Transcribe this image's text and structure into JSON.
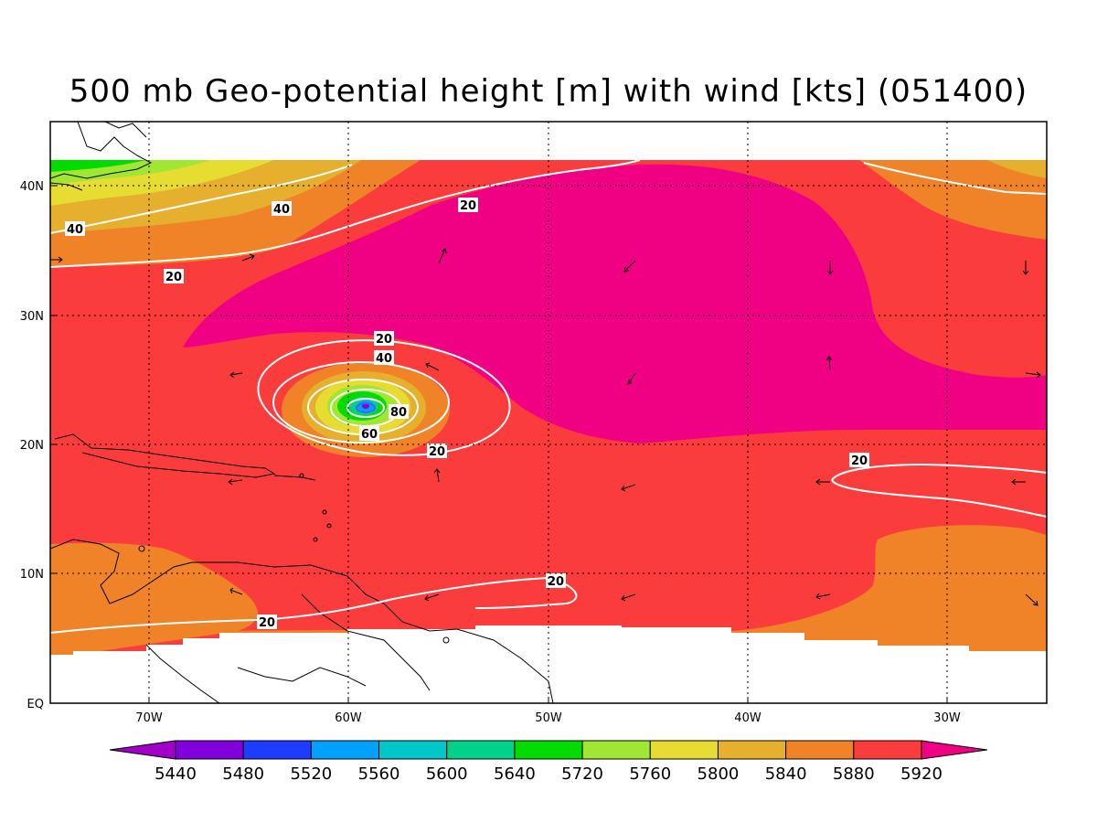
{
  "title": "500 mb Geo-potential height [m] with wind [kts] (051400)",
  "axes": {
    "lon_labels": [
      "70W",
      "60W",
      "50W",
      "40W",
      "30W"
    ],
    "lat_labels": [
      "40N",
      "30N",
      "20N",
      "10N",
      "EQ"
    ]
  },
  "colorbar": {
    "levels": [
      "5440",
      "5480",
      "5520",
      "5560",
      "5600",
      "5640",
      "5720",
      "5760",
      "5800",
      "5840",
      "5880",
      "5920"
    ],
    "colors": [
      "#a000c8",
      "#8200dc",
      "#1e3cff",
      "#00a0ff",
      "#00c8c8",
      "#00d28c",
      "#00dc00",
      "#a0e632",
      "#e6dc32",
      "#e6af2d",
      "#f08228",
      "#fa3c3c",
      "#f00082"
    ]
  },
  "contour_labels": [
    "20",
    "20",
    "40",
    "40",
    "20",
    "20",
    "40",
    "80",
    "60",
    "20",
    "20",
    "20",
    "20"
  ]
}
